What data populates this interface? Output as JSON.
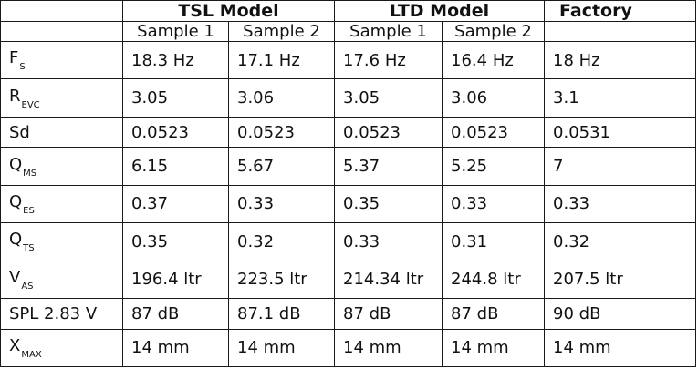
{
  "table": {
    "groups": [
      {
        "label": "TSL Model",
        "span": 2
      },
      {
        "label": "LTD Model",
        "span": 2
      },
      {
        "label": "Factory",
        "span": 1
      }
    ],
    "samples": [
      "Sample 1",
      "Sample 2",
      "Sample 1",
      "Sample 2",
      ""
    ],
    "rows": [
      {
        "param": "F",
        "sub": "S",
        "values": [
          "18.3 Hz",
          "17.1 Hz",
          "17.6 Hz",
          "16.4 Hz",
          "18 Hz"
        ]
      },
      {
        "param": "R",
        "sub": "EVC",
        "values": [
          "3.05",
          "3.06",
          "3.05",
          "3.06",
          "3.1"
        ]
      },
      {
        "param": "Sd",
        "sub": "",
        "values": [
          "0.0523",
          "0.0523",
          "0.0523",
          "0.0523",
          "0.0531"
        ]
      },
      {
        "param": "Q",
        "sub": "MS",
        "values": [
          "6.15",
          "5.67",
          "5.37",
          "5.25",
          "7"
        ]
      },
      {
        "param": "Q",
        "sub": "ES",
        "values": [
          "0.37",
          "0.33",
          "0.35",
          "0.33",
          "0.33"
        ]
      },
      {
        "param": "Q",
        "sub": "TS",
        "values": [
          "0.35",
          "0.32",
          "0.33",
          "0.31",
          "0.32"
        ]
      },
      {
        "param": "V",
        "sub": "AS",
        "values": [
          "196.4 ltr",
          "223.5 ltr",
          "214.34 ltr",
          "244.8 ltr",
          "207.5 ltr"
        ]
      },
      {
        "param": "SPL 2.83 V",
        "sub": "",
        "values": [
          "87 dB",
          "87.1 dB",
          "87 dB",
          "87 dB",
          "90 dB"
        ]
      },
      {
        "param": "X",
        "sub": "MAX",
        "values": [
          "14 mm",
          "14 mm",
          "14 mm",
          "14 mm",
          "14 mm"
        ]
      }
    ]
  }
}
